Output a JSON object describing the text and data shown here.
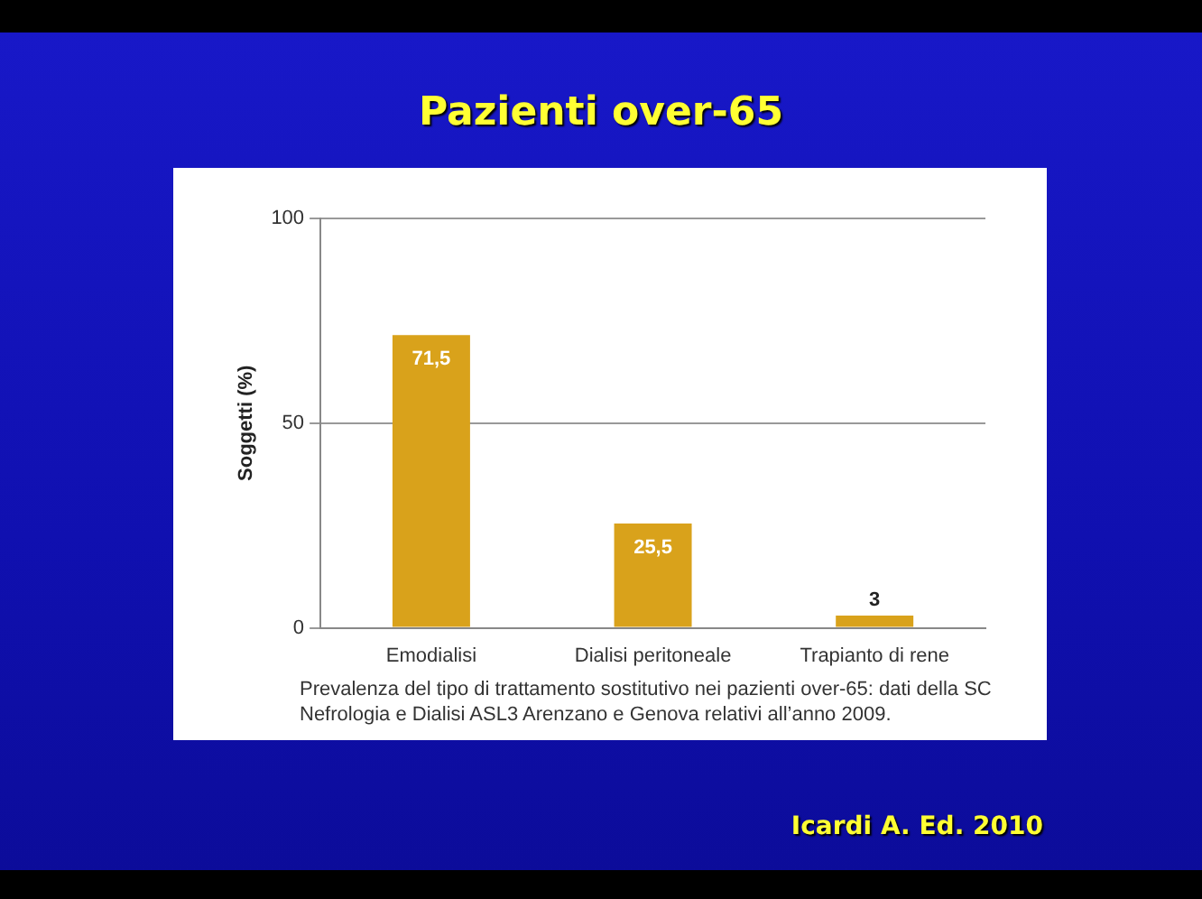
{
  "chart_data": {
    "type": "bar",
    "title": "Pazienti over-65",
    "ylabel": "Soggetti (%)",
    "categories": [
      "Emodialisi",
      "Dialisi peritoneale",
      "Trapianto di rene"
    ],
    "values": [
      71.5,
      25.5,
      3
    ],
    "value_labels": [
      "71,5",
      "25,5",
      "3"
    ],
    "color": "#d9a21b",
    "ylim": [
      0,
      100
    ],
    "yticks": [
      0,
      50,
      100
    ],
    "grid": "y",
    "annotations": [
      "Prevalenza del tipo di trattamento sostitutivo nei pazienti over-65: dati della SC Nefrologia e Dialisi ASL3 Arenzano e Genova relativi all’anno 2009.",
      "Icardi A. Ed. 2010"
    ]
  }
}
